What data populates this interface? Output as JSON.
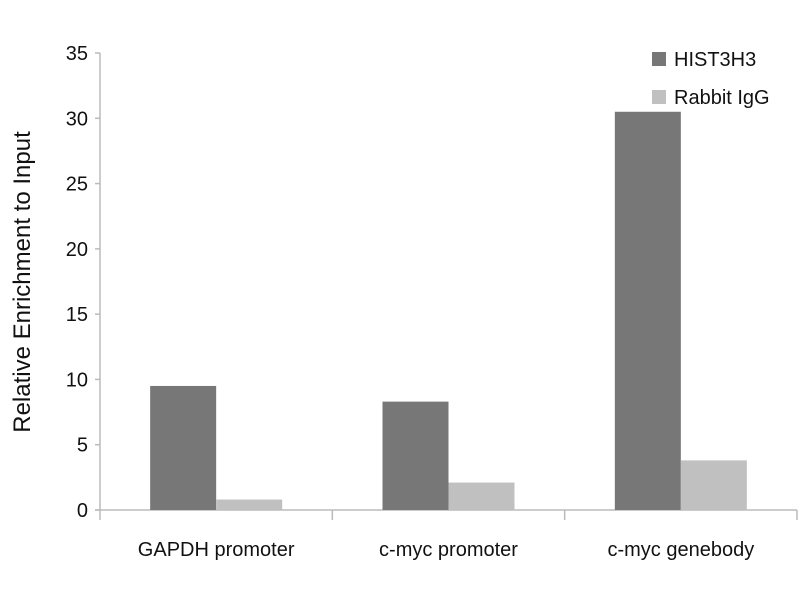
{
  "chart_data": {
    "type": "bar",
    "title": "",
    "xlabel": "",
    "ylabel": "Relative Enrichment to Input",
    "ylim": [
      0,
      35
    ],
    "yticks": [
      0,
      5,
      10,
      15,
      20,
      25,
      30,
      35
    ],
    "grid": false,
    "legend_position": "top-right",
    "categories": [
      "GAPDH promoter",
      "c-myc promoter",
      "c-myc genebody"
    ],
    "series": [
      {
        "name": "HIST3H3",
        "color": "#777777",
        "values": [
          9.5,
          8.3,
          30.5
        ]
      },
      {
        "name": "Rabbit IgG",
        "color": "#c0c0c0",
        "values": [
          0.8,
          2.1,
          3.8
        ]
      }
    ]
  }
}
